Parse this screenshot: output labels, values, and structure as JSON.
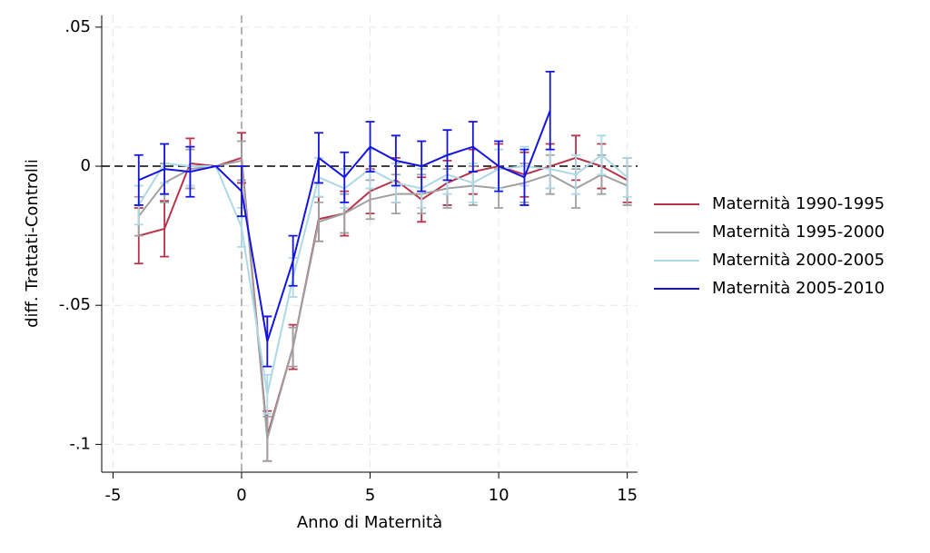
{
  "chart_data": {
    "type": "line",
    "xlabel": "Anno di Maternità",
    "ylabel": "diff. Trattati-Controlli",
    "x": [
      -4,
      -3,
      -2,
      -1,
      0,
      1,
      2,
      3,
      4,
      5,
      6,
      7,
      8,
      9,
      10,
      11,
      12,
      13,
      14,
      15
    ],
    "series": [
      {
        "name": "Maternità 1990-1995",
        "color": "#b8334a",
        "values": [
          -0.025,
          -0.0225,
          0.001,
          0,
          0.003,
          -0.097,
          -0.065,
          -0.019,
          -0.017,
          -0.009,
          -0.005,
          -0.012,
          -0.006,
          -0.002,
          0,
          -0.003,
          0,
          0.003,
          0,
          -0.005
        ],
        "errors": [
          0.01,
          0.01,
          0.009,
          0,
          0.009,
          0.009,
          0.008,
          0.008,
          0.008,
          0.008,
          0.008,
          0.008,
          0.008,
          0.008,
          0.008,
          0.008,
          0.008,
          0.008,
          0.008,
          0.008
        ]
      },
      {
        "name": "Maternità 1995-2000",
        "color": "#a0a0a0",
        "values": [
          -0.018,
          -0.006,
          -0.001,
          0,
          0.002,
          -0.098,
          -0.065,
          -0.02,
          -0.017,
          -0.012,
          -0.01,
          -0.01,
          -0.008,
          -0.007,
          -0.008,
          -0.006,
          -0.003,
          -0.008,
          -0.003,
          -0.007
        ],
        "errors": [
          0.007,
          0.007,
          0.007,
          0,
          0.007,
          0.008,
          0.007,
          0.007,
          0.007,
          0.007,
          0.007,
          0.007,
          0.007,
          0.007,
          0.007,
          0.007,
          0.007,
          0.007,
          0.007,
          0.007
        ]
      },
      {
        "name": "Maternità 2000-2005",
        "color": "#add8e6",
        "values": [
          -0.014,
          0.001,
          0,
          0,
          -0.022,
          -0.082,
          -0.04,
          -0.004,
          -0.008,
          -0.001,
          -0.006,
          -0.008,
          -0.003,
          -0.006,
          -0.001,
          0,
          -0.001,
          -0.003,
          0.004,
          -0.004
        ],
        "errors": [
          0.007,
          0.007,
          0.007,
          0,
          0.007,
          0.007,
          0.007,
          0.007,
          0.007,
          0.007,
          0.007,
          0.007,
          0.007,
          0.007,
          0.007,
          0.007,
          0.007,
          0.007,
          0.007,
          0.007
        ]
      },
      {
        "name": "Maternità 2005-2010",
        "color": "#1414e0",
        "values": [
          -0.005,
          -0.001,
          -0.002,
          0,
          -0.009,
          -0.063,
          -0.034,
          0.003,
          -0.004,
          0.007,
          0.002,
          0,
          0.004,
          0.007,
          0,
          -0.004,
          0.02,
          null,
          null,
          null
        ],
        "errors": [
          0.009,
          0.009,
          0.009,
          0,
          0.009,
          0.009,
          0.009,
          0.009,
          0.009,
          0.009,
          0.009,
          0.009,
          0.009,
          0.009,
          0.009,
          0.01,
          0.014,
          null,
          null,
          null
        ]
      }
    ],
    "xlim": [
      -5.44,
      15.4
    ],
    "ylim": [
      -0.11,
      0.0542
    ],
    "xticks": [
      -5,
      0,
      5,
      10,
      15
    ],
    "yticks": [
      {
        "value": 0.05,
        "label": ".05"
      },
      {
        "value": 0,
        "label": "0"
      },
      {
        "value": -0.05,
        "label": "-.05"
      },
      {
        "value": -0.1,
        "label": "-.1"
      }
    ],
    "vline": 0,
    "hline": 0,
    "grid": true,
    "legend": "right"
  }
}
